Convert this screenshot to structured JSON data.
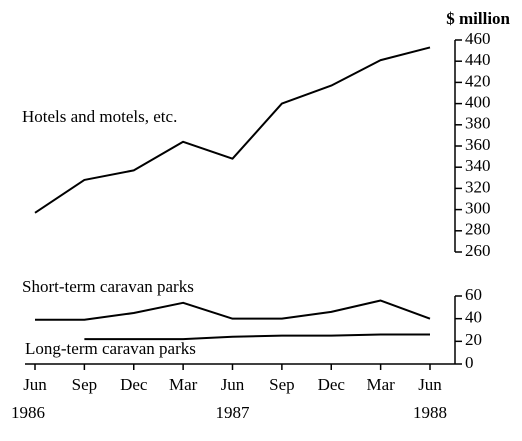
{
  "chart_data": [
    {
      "type": "line",
      "axis_label": "$ million",
      "series": [
        {
          "name": "Hotels and motels, etc.",
          "color": "#000000",
          "values": [
            297,
            328,
            337,
            364,
            348,
            400,
            417,
            441,
            453
          ]
        }
      ],
      "ylim": [
        260,
        460
      ],
      "yticks": [
        260,
        280,
        300,
        320,
        340,
        360,
        380,
        400,
        420,
        440,
        460
      ]
    },
    {
      "type": "line",
      "categories": [
        "Jun",
        "Sep",
        "Dec",
        "Mar",
        "Jun",
        "Sep",
        "Dec",
        "Mar",
        "Jun"
      ],
      "years": [
        "1986",
        null,
        null,
        null,
        "1987",
        null,
        null,
        null,
        "1988"
      ],
      "series": [
        {
          "name": "Short-term caravan parks",
          "color": "#000000",
          "values": [
            39,
            39,
            45,
            54,
            40,
            40,
            46,
            56,
            40
          ]
        },
        {
          "name": "Long-term caravan parks",
          "color": "#000000",
          "values": [
            null,
            22,
            22,
            22,
            24,
            25,
            25,
            26,
            26
          ]
        }
      ],
      "ylim": [
        0,
        60
      ],
      "yticks": [
        0,
        20,
        40,
        60
      ]
    }
  ]
}
